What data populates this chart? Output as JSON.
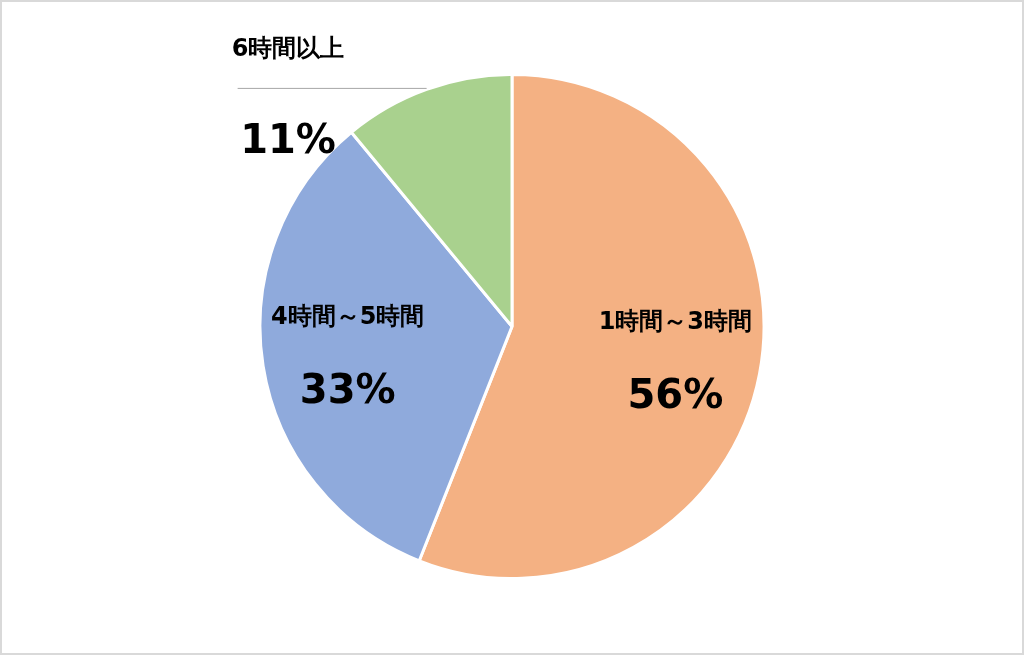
{
  "chart_data": {
    "type": "pie",
    "categories": [
      "1時間～3時間",
      "4時間～5時間",
      "6時間以上"
    ],
    "values": [
      56,
      33,
      11
    ],
    "value_labels": [
      "56%",
      "33%",
      "11%"
    ],
    "colors": [
      "#f4b183",
      "#8faadc",
      "#a9d18e"
    ],
    "legend": false
  }
}
